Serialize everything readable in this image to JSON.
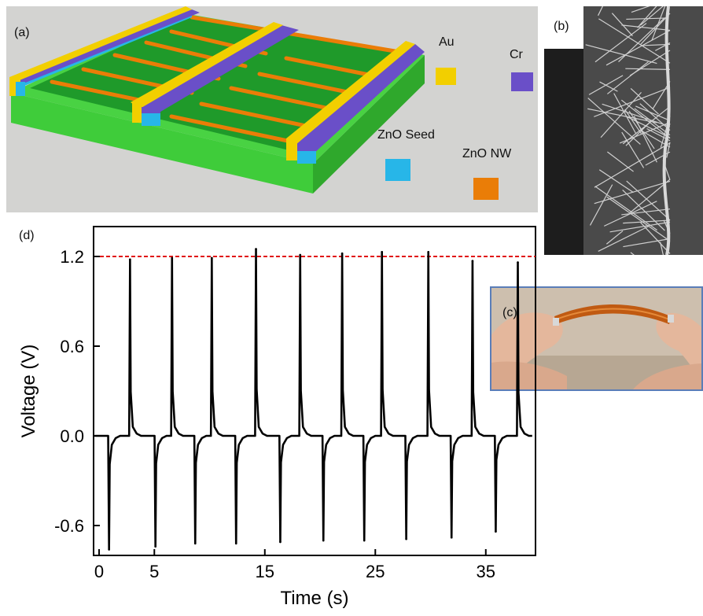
{
  "panel_a": {
    "label": "(a)",
    "legend": [
      {
        "name": "Au",
        "color": "#f2cf00"
      },
      {
        "name": "Cr",
        "color": "#6a4fc8"
      },
      {
        "name": "ZnO Seed",
        "color": "#27b6e8"
      },
      {
        "name": "ZnO NW",
        "color": "#ea7d07"
      }
    ],
    "substrate_color": "#3fcc3a",
    "active_color": "#1f9a2a"
  },
  "panel_b": {
    "label": "(b)"
  },
  "panel_c": {
    "label": "(c)"
  },
  "chart_data": {
    "type": "line",
    "panel_label": "(d)",
    "xlabel": "Time (s)",
    "ylabel": "Voltage (V)",
    "xlim": [
      -0.5,
      39.5
    ],
    "ylim": [
      -0.8,
      1.4
    ],
    "xticks": [
      0,
      5,
      15,
      25,
      35
    ],
    "xtick_labels": [
      "0",
      "5",
      "15",
      "25",
      "35"
    ],
    "yticks": [
      -0.6,
      0.0,
      0.6,
      1.2
    ],
    "ytick_labels": [
      "-0.6",
      "0.0",
      "0.6",
      "1.2"
    ],
    "reference_line": {
      "y": 1.2,
      "color": "#e01010",
      "style": "dashed"
    },
    "line_color": "#000000",
    "grid": false,
    "negative_pulses": [
      {
        "x": 0.9,
        "y": -0.76
      },
      {
        "x": 5.1,
        "y": -0.74
      },
      {
        "x": 8.7,
        "y": -0.72
      },
      {
        "x": 12.4,
        "y": -0.72
      },
      {
        "x": 16.4,
        "y": -0.71
      },
      {
        "x": 20.3,
        "y": -0.7
      },
      {
        "x": 24.0,
        "y": -0.7
      },
      {
        "x": 27.8,
        "y": -0.69
      },
      {
        "x": 31.9,
        "y": -0.68
      },
      {
        "x": 35.9,
        "y": -0.64
      }
    ],
    "positive_pulses": [
      {
        "x": 2.8,
        "y": 1.18
      },
      {
        "x": 6.6,
        "y": 1.19
      },
      {
        "x": 10.2,
        "y": 1.19
      },
      {
        "x": 14.2,
        "y": 1.25
      },
      {
        "x": 18.2,
        "y": 1.21
      },
      {
        "x": 22.0,
        "y": 1.22
      },
      {
        "x": 25.6,
        "y": 1.23
      },
      {
        "x": 29.8,
        "y": 1.23
      },
      {
        "x": 33.8,
        "y": 1.17
      },
      {
        "x": 37.9,
        "y": 1.16
      }
    ]
  }
}
